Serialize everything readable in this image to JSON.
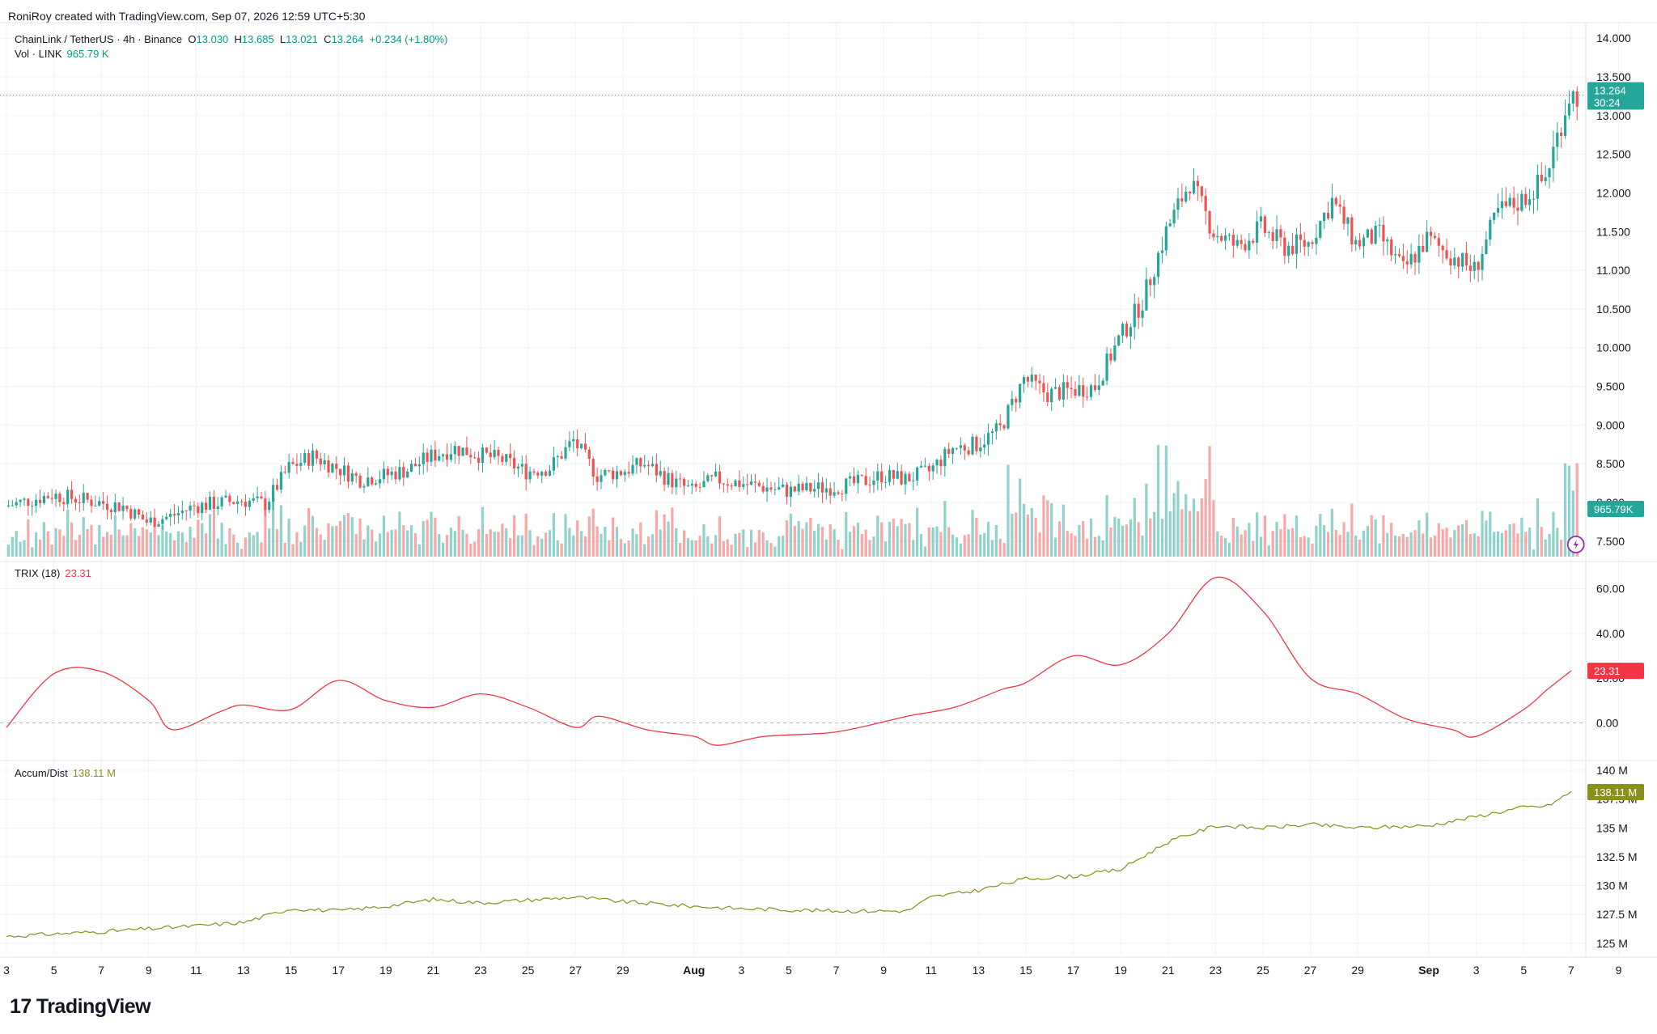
{
  "header": {
    "text": "RoniRoy created with TradingView.com, Sep 07, 2026 12:59 UTC+5:30"
  },
  "legend": {
    "symbol": "ChainLink / TetherUS · 4h · Binance",
    "o_label": "O",
    "o": "13.030",
    "h_label": "H",
    "h": "13.685",
    "l_label": "L",
    "l": "13.021",
    "c_label": "C",
    "c": "13.264",
    "change": "+0.234 (+1.80%)",
    "vol_label": "Vol · LINK",
    "vol": "965.79 K",
    "trix_label": "TRIX (18)",
    "trix": "23.31",
    "ad_label": "Accum/Dist",
    "ad": "138.11 M"
  },
  "price_tag": {
    "value": "13.264",
    "timer": "30:24"
  },
  "vol_tag": "965.79K",
  "trix_tag": "23.31",
  "ad_tag": "138.11 M",
  "brand": {
    "logo": "17",
    "name": "TradingView"
  },
  "colors": {
    "up": "#26a69a",
    "down": "#ef5350",
    "up_text": "#089981",
    "trix": "#f23645",
    "ad": "#8a8f1d",
    "grid": "#f0f3fa"
  },
  "chart_data": [
    {
      "type": "candlestick",
      "title": "ChainLink / TetherUS · 4h · Binance",
      "y_ticks": [
        "14.000",
        "13.500",
        "13.000",
        "12.500",
        "12.000",
        "11.500",
        "11.000",
        "10.500",
        "10.000",
        "9.500",
        "9.000",
        "8.500",
        "8.000",
        "7.500"
      ],
      "x_ticks": [
        "3",
        "5",
        "7",
        "9",
        "11",
        "13",
        "15",
        "17",
        "19",
        "21",
        "23",
        "25",
        "27",
        "29",
        "Aug",
        "3",
        "5",
        "7",
        "9",
        "11",
        "13",
        "15",
        "17",
        "19",
        "21",
        "23",
        "25",
        "27",
        "29",
        "Sep",
        "3",
        "5",
        "7",
        "9"
      ],
      "ylim": [
        7.3,
        14.2
      ],
      "close_path": [
        [
          "Jul 3",
          7.95
        ],
        [
          "Jul 5",
          8.1
        ],
        [
          "Jul 6",
          8.05
        ],
        [
          "Jul 8",
          7.95
        ],
        [
          "Jul 9",
          7.75
        ],
        [
          "Jul 10",
          7.82
        ],
        [
          "Jul 11",
          7.95
        ],
        [
          "Jul 13",
          8.03
        ],
        [
          "Jul 14",
          7.98
        ],
        [
          "Jul 15",
          8.45
        ],
        [
          "Jul 16",
          8.6
        ],
        [
          "Jul 17",
          8.45
        ],
        [
          "Jul 18",
          8.3
        ],
        [
          "Jul 19",
          8.35
        ],
        [
          "Jul 20",
          8.42
        ],
        [
          "Jul 21",
          8.6
        ],
        [
          "Jul 22",
          8.7
        ],
        [
          "Jul 23",
          8.62
        ],
        [
          "Jul 24",
          8.55
        ],
        [
          "Jul 25",
          8.4
        ],
        [
          "Jul 26",
          8.45
        ],
        [
          "Jul 27",
          8.8
        ],
        [
          "Jul 28",
          8.35
        ],
        [
          "Jul 29",
          8.4
        ],
        [
          "Jul 30",
          8.5
        ],
        [
          "Jul 31",
          8.3
        ],
        [
          "Aug 1",
          8.15
        ],
        [
          "Aug 2",
          8.3
        ],
        [
          "Aug 3",
          8.25
        ],
        [
          "Aug 5",
          8.15
        ],
        [
          "Aug 7",
          8.2
        ],
        [
          "Aug 8",
          8.25
        ],
        [
          "Aug 9",
          8.35
        ],
        [
          "Aug 10",
          8.3
        ],
        [
          "Aug 11",
          8.4
        ],
        [
          "Aug 12",
          8.7
        ],
        [
          "Aug 13",
          8.75
        ],
        [
          "Aug 14",
          8.95
        ],
        [
          "Aug 15",
          9.6
        ],
        [
          "Aug 16",
          9.4
        ],
        [
          "Aug 17",
          9.45
        ],
        [
          "Aug 18",
          9.5
        ],
        [
          "Aug 19",
          10.1
        ],
        [
          "Aug 20",
          10.6
        ],
        [
          "Aug 21",
          11.5
        ],
        [
          "Aug 22",
          12.15
        ],
        [
          "Aug 23",
          11.5
        ],
        [
          "Aug 24",
          11.3
        ],
        [
          "Aug 25",
          11.55
        ],
        [
          "Aug 26",
          11.3
        ],
        [
          "Aug 27",
          11.35
        ],
        [
          "Aug 28",
          11.9
        ],
        [
          "Aug 29",
          11.35
        ],
        [
          "Aug 30",
          11.45
        ],
        [
          "Aug 31",
          11.0
        ],
        [
          "Sep 1",
          11.4
        ],
        [
          "Sep 2",
          11.2
        ],
        [
          "Sep 3",
          11.0
        ],
        [
          "Sep 4",
          11.75
        ],
        [
          "Sep 5",
          11.9
        ],
        [
          "Sep 6",
          12.2
        ],
        [
          "Sep 7",
          13.26
        ]
      ]
    },
    {
      "type": "bar",
      "title": "Vol · LINK",
      "note": "volume histogram under price pane, peak near Aug 22"
    },
    {
      "type": "line",
      "title": "TRIX (18)",
      "y_ticks": [
        "60.00",
        "40.00",
        "20.00",
        "0.00"
      ],
      "ylim": [
        -15,
        70
      ],
      "series": [
        {
          "name": "TRIX (18)",
          "points": [
            [
              "Jul 3",
              -2
            ],
            [
              "Jul 5",
              22
            ],
            [
              "Jul 7",
              23
            ],
            [
              "Jul 9",
              10
            ],
            [
              "Jul 10",
              -3
            ],
            [
              "Jul 12",
              5
            ],
            [
              "Jul 13",
              8
            ],
            [
              "Jul 15",
              6
            ],
            [
              "Jul 17",
              19
            ],
            [
              "Jul 19",
              10
            ],
            [
              "Jul 21",
              7
            ],
            [
              "Jul 23",
              13
            ],
            [
              "Jul 25",
              7
            ],
            [
              "Jul 27",
              -2
            ],
            [
              "Jul 28",
              3
            ],
            [
              "Jul 30",
              -3
            ],
            [
              "Aug 1",
              -6
            ],
            [
              "Aug 2",
              -10
            ],
            [
              "Aug 4",
              -6
            ],
            [
              "Aug 7",
              -4
            ],
            [
              "Aug 10",
              3
            ],
            [
              "Aug 12",
              7
            ],
            [
              "Aug 14",
              15
            ],
            [
              "Aug 15",
              18
            ],
            [
              "Aug 17",
              30
            ],
            [
              "Aug 19",
              26
            ],
            [
              "Aug 21",
              40
            ],
            [
              "Aug 23",
              65
            ],
            [
              "Aug 25",
              50
            ],
            [
              "Aug 27",
              20
            ],
            [
              "Aug 29",
              13
            ],
            [
              "Aug 31",
              2
            ],
            [
              "Sep 2",
              -3
            ],
            [
              "Sep 3",
              -6
            ],
            [
              "Sep 5",
              6
            ],
            [
              "Sep 6",
              15
            ],
            [
              "Sep 7",
              23.31
            ]
          ]
        }
      ]
    },
    {
      "type": "line",
      "title": "Accum/Dist",
      "y_ticks": [
        "140 M",
        "137.5 M",
        "135 M",
        "132.5 M",
        "130 M",
        "127.5 M",
        "125 M"
      ],
      "ylim": [
        124,
        140.5
      ],
      "series": [
        {
          "name": "Accum/Dist",
          "points": [
            [
              "Jul 3",
              125.6
            ],
            [
              "Jul 7",
              126.0
            ],
            [
              "Jul 11",
              126.5
            ],
            [
              "Jul 13",
              126.8
            ],
            [
              "Jul 15",
              128.0
            ],
            [
              "Jul 17",
              127.8
            ],
            [
              "Jul 19",
              128.2
            ],
            [
              "Jul 21",
              128.8
            ],
            [
              "Jul 23",
              128.5
            ],
            [
              "Jul 27",
              129.0
            ],
            [
              "Jul 29",
              128.6
            ],
            [
              "Aug 1",
              128.2
            ],
            [
              "Aug 3",
              128.0
            ],
            [
              "Aug 5",
              127.9
            ],
            [
              "Aug 7",
              127.8
            ],
            [
              "Aug 10",
              127.8
            ],
            [
              "Aug 11",
              129.0
            ],
            [
              "Aug 13",
              129.6
            ],
            [
              "Aug 15",
              130.6
            ],
            [
              "Aug 17",
              130.8
            ],
            [
              "Aug 19",
              131.4
            ],
            [
              "Aug 21",
              133.8
            ],
            [
              "Aug 23",
              135.2
            ],
            [
              "Aug 25",
              135.0
            ],
            [
              "Aug 27",
              135.3
            ],
            [
              "Aug 29",
              135.0
            ],
            [
              "Sep 1",
              135.2
            ],
            [
              "Sep 3",
              136.0
            ],
            [
              "Sep 5",
              136.8
            ],
            [
              "Sep 6",
              136.9
            ],
            [
              "Sep 7",
              138.11
            ]
          ]
        }
      ]
    }
  ]
}
